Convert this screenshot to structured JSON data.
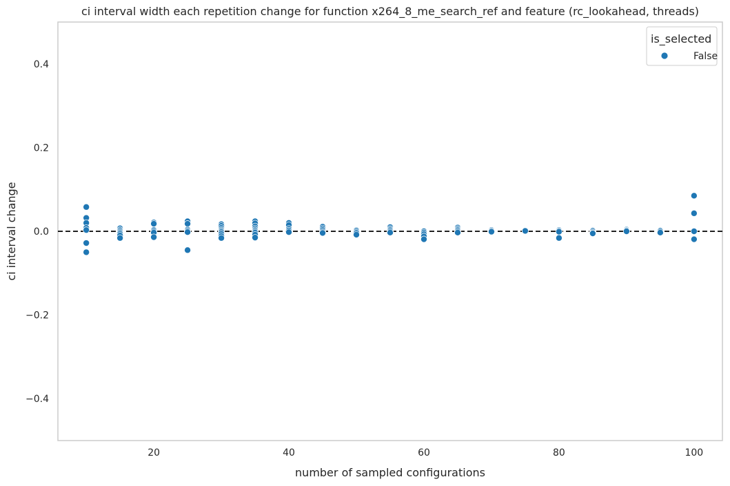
{
  "chart_data": {
    "type": "scatter",
    "title": "ci interval width each repetition change for function x264_8_me_search_ref and feature (rc_lookahead, threads)",
    "xlabel": "number of sampled configurations",
    "ylabel": "ci interval change",
    "xlim": [
      5.8,
      104.2
    ],
    "ylim": [
      -0.5,
      0.5
    ],
    "xticks": [
      20,
      40,
      60,
      80,
      100
    ],
    "yticks": [
      -0.4,
      -0.2,
      0.0,
      0.2,
      0.4
    ],
    "xtick_labels": [
      "20",
      "40",
      "60",
      "80",
      "100"
    ],
    "ytick_labels": [
      "−0.4",
      "−0.2",
      "0.0",
      "0.2",
      "0.4"
    ],
    "grid": false,
    "reference_line": {
      "y": 0.0,
      "style": "dashed",
      "color": "#000000"
    },
    "legend": {
      "title": "is_selected",
      "placement": "top-right",
      "entries": [
        "False"
      ]
    },
    "series": [
      {
        "name": "False",
        "color": "#1f77b4",
        "points": [
          [
            10,
            0.058
          ],
          [
            10,
            0.032
          ],
          [
            10,
            0.02
          ],
          [
            10,
            0.008
          ],
          [
            10,
            0.003
          ],
          [
            10,
            -0.028
          ],
          [
            10,
            -0.05
          ],
          [
            15,
            0.007
          ],
          [
            15,
            0.003
          ],
          [
            15,
            0.0
          ],
          [
            15,
            -0.003
          ],
          [
            15,
            -0.006
          ],
          [
            15,
            -0.01
          ],
          [
            15,
            -0.016
          ],
          [
            20,
            0.021
          ],
          [
            20,
            0.018
          ],
          [
            20,
            0.003
          ],
          [
            20,
            0.0
          ],
          [
            20,
            -0.003
          ],
          [
            20,
            -0.014
          ],
          [
            25,
            0.024
          ],
          [
            25,
            0.018
          ],
          [
            25,
            0.004
          ],
          [
            25,
            0.001
          ],
          [
            25,
            -0.002
          ],
          [
            25,
            -0.045
          ],
          [
            30,
            0.017
          ],
          [
            30,
            0.013
          ],
          [
            30,
            0.008
          ],
          [
            30,
            0.004
          ],
          [
            30,
            0.001
          ],
          [
            30,
            -0.002
          ],
          [
            30,
            -0.006
          ],
          [
            30,
            -0.011
          ],
          [
            30,
            -0.016
          ],
          [
            35,
            0.024
          ],
          [
            35,
            0.019
          ],
          [
            35,
            0.012
          ],
          [
            35,
            0.007
          ],
          [
            35,
            0.003
          ],
          [
            35,
            0.0
          ],
          [
            35,
            -0.003
          ],
          [
            35,
            -0.008
          ],
          [
            35,
            -0.015
          ],
          [
            40,
            0.02
          ],
          [
            40,
            0.015
          ],
          [
            40,
            0.006
          ],
          [
            40,
            0.002
          ],
          [
            40,
            -0.002
          ],
          [
            45,
            0.011
          ],
          [
            45,
            0.007
          ],
          [
            45,
            0.003
          ],
          [
            45,
            -0.001
          ],
          [
            45,
            -0.004
          ],
          [
            50,
            0.002
          ],
          [
            50,
            -0.001
          ],
          [
            50,
            -0.004
          ],
          [
            50,
            -0.008
          ],
          [
            55,
            0.01
          ],
          [
            55,
            0.006
          ],
          [
            55,
            0.003
          ],
          [
            55,
            0.0
          ],
          [
            55,
            -0.003
          ],
          [
            60,
            0.0
          ],
          [
            60,
            -0.003
          ],
          [
            60,
            -0.007
          ],
          [
            60,
            -0.012
          ],
          [
            60,
            -0.019
          ],
          [
            65,
            0.009
          ],
          [
            65,
            0.006
          ],
          [
            65,
            0.003
          ],
          [
            65,
            0.0
          ],
          [
            65,
            -0.003
          ],
          [
            70,
            0.003
          ],
          [
            70,
            0.001
          ],
          [
            70,
            -0.001
          ],
          [
            75,
            0.002
          ],
          [
            75,
            0.001
          ],
          [
            80,
            0.003
          ],
          [
            80,
            0.001
          ],
          [
            80,
            -0.001
          ],
          [
            80,
            -0.016
          ],
          [
            85,
            0.002
          ],
          [
            85,
            0.0
          ],
          [
            85,
            -0.003
          ],
          [
            85,
            -0.005
          ],
          [
            90,
            0.004
          ],
          [
            90,
            0.002
          ],
          [
            90,
            0.0
          ],
          [
            95,
            0.002
          ],
          [
            95,
            0.0
          ],
          [
            95,
            -0.003
          ],
          [
            100,
            0.085
          ],
          [
            100,
            0.043
          ],
          [
            100,
            0.0
          ],
          [
            100,
            -0.019
          ]
        ]
      }
    ]
  }
}
